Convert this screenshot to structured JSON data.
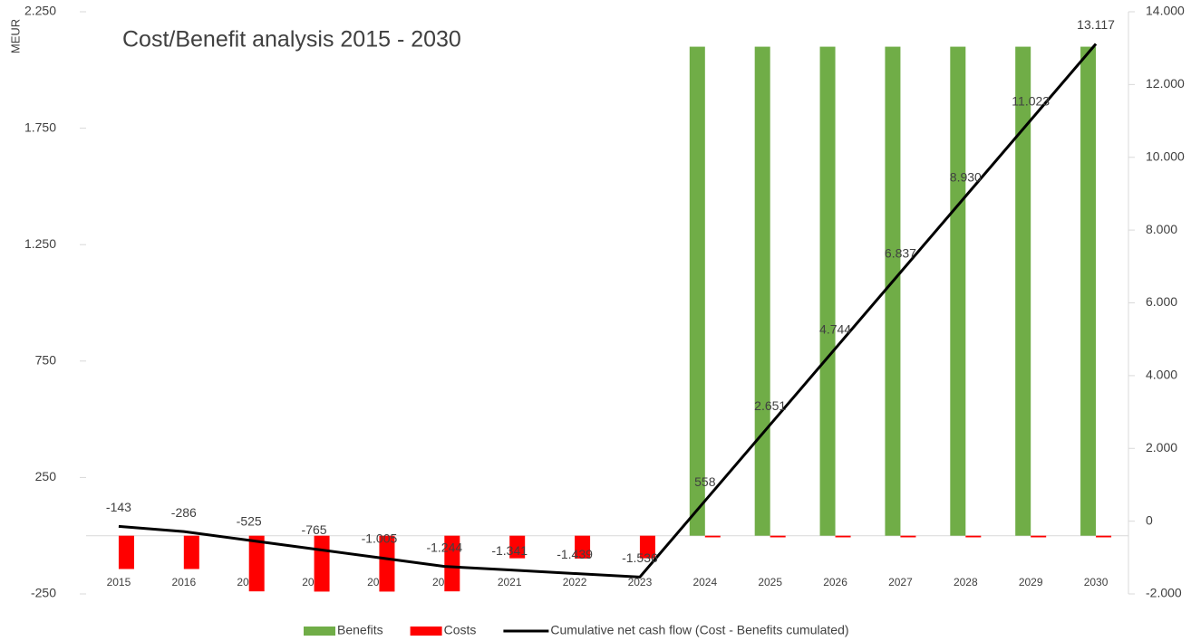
{
  "chart_data": {
    "type": "bar",
    "title": "Cost/Benefit analysis 2015 - 2030",
    "ylabel": "MEUR",
    "categories": [
      "2015",
      "2016",
      "2017",
      "2018",
      "2019",
      "2020",
      "2021",
      "2022",
      "2023",
      "2024",
      "2025",
      "2026",
      "2027",
      "2028",
      "2029",
      "2030"
    ],
    "ylim": [
      -250,
      2250
    ],
    "yticks": [
      -250,
      250,
      750,
      {
        "value": 1250,
        "label": "1.250"
      },
      {
        "value": 1750,
        "label": "1.750"
      },
      {
        "value": 2250,
        "label": "2.250"
      }
    ],
    "y2lim": [
      -2000,
      14000
    ],
    "y2ticks": [
      {
        "value": -2000,
        "label": "-2.000"
      },
      0,
      {
        "value": 2000,
        "label": "2.000"
      },
      {
        "value": 4000,
        "label": "4.000"
      },
      {
        "value": 6000,
        "label": "6.000"
      },
      {
        "value": 8000,
        "label": "8.000"
      },
      {
        "value": 10000,
        "label": "10.000"
      },
      {
        "value": 12000,
        "label": "12.000"
      },
      {
        "value": 14000,
        "label": "14.000"
      }
    ],
    "series": [
      {
        "name": "Benefits",
        "type": "bar",
        "color": "#70ad47",
        "values": [
          0,
          0,
          0,
          0,
          0,
          0,
          0,
          0,
          0,
          2100,
          2100,
          2100,
          2100,
          2100,
          2100,
          2100
        ]
      },
      {
        "name": "Costs",
        "type": "bar",
        "color": "#ff0000",
        "values": [
          -143,
          -143,
          -239,
          -240,
          -240,
          -239,
          -97,
          -98,
          -97,
          -7,
          -7,
          -7,
          -7,
          -7,
          -7,
          -7
        ]
      },
      {
        "name": "Cumulative net cash flow (Cost - Benefits cumulated)",
        "type": "line",
        "axis": "y2",
        "color": "#000000",
        "values": [
          -143,
          -286,
          -525,
          -765,
          -1005,
          -1244,
          -1341,
          -1439,
          -1536,
          558,
          2651,
          4744,
          6837,
          8930,
          11023,
          13117
        ],
        "value_labels": [
          "-143",
          "-286",
          "-525",
          "-765",
          "-1.005",
          "-1.244",
          "-1.341",
          "-1.439",
          "-1.536",
          "558",
          "2.651",
          "4.744",
          "6.837",
          "8.930",
          "11.023",
          "13.117"
        ]
      }
    ],
    "legend": "bottom"
  }
}
